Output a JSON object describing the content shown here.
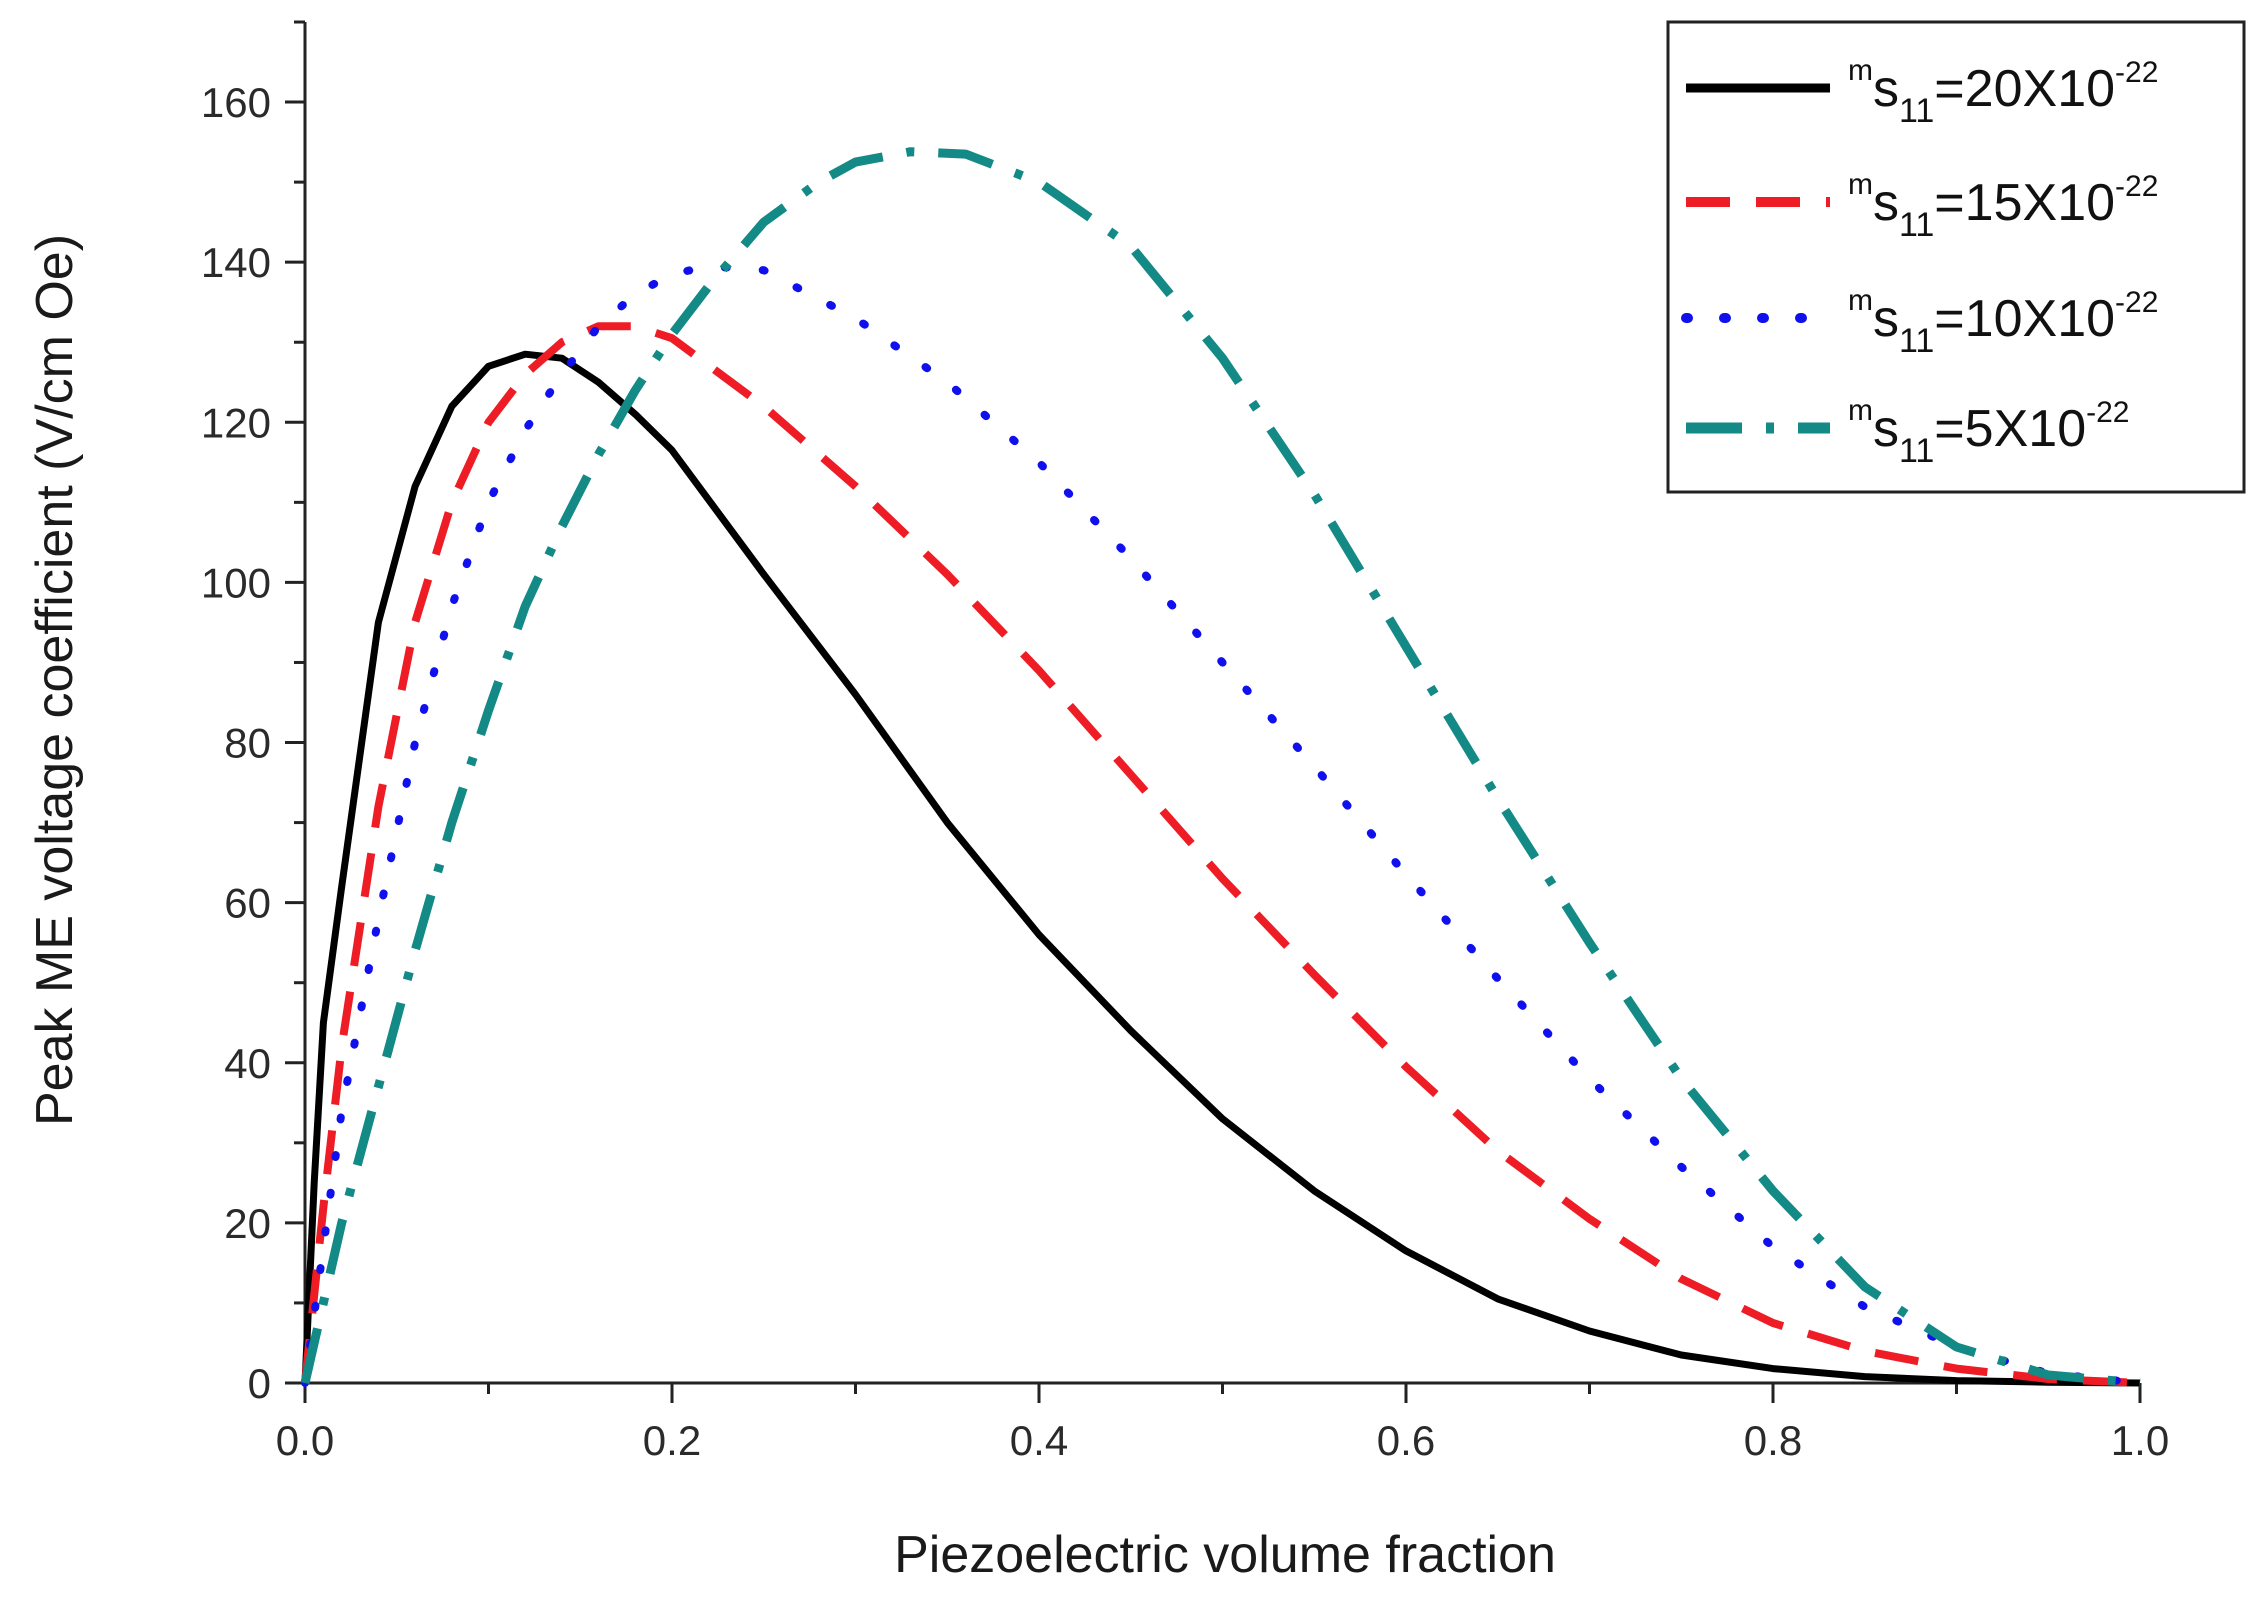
{
  "chart_data": {
    "type": "line",
    "title": "",
    "xlabel": "Piezoelectric volume fraction",
    "ylabel": "Peak ME voltage coefficient (V/cm Oe)",
    "xlim": [
      0.0,
      1.0
    ],
    "ylim": [
      0,
      170
    ],
    "x_ticks": [
      "0.0",
      "0.2",
      "0.4",
      "0.6",
      "0.8",
      "1.0"
    ],
    "y_ticks": [
      "0",
      "20",
      "40",
      "60",
      "80",
      "100",
      "120",
      "140",
      "160"
    ],
    "grid": false,
    "legend_position": "top-right",
    "series": [
      {
        "name": "mS11=20X10-22",
        "legend": {
          "sup": "m",
          "base": "s",
          "sub": "11",
          "eq": "=20X10",
          "exp": "-22"
        },
        "color": "#000000",
        "style": "solid",
        "x": [
          0,
          0.005,
          0.01,
          0.02,
          0.04,
          0.06,
          0.08,
          0.1,
          0.12,
          0.14,
          0.16,
          0.18,
          0.2,
          0.25,
          0.3,
          0.35,
          0.4,
          0.45,
          0.5,
          0.55,
          0.6,
          0.65,
          0.7,
          0.75,
          0.8,
          0.85,
          0.9,
          0.95,
          1.0
        ],
        "y": [
          0,
          25,
          45,
          62,
          95,
          112,
          122,
          127,
          128.5,
          128,
          125,
          121,
          116.5,
          101,
          86,
          70,
          56,
          44,
          33,
          24,
          16.5,
          10.5,
          6.5,
          3.5,
          1.8,
          0.8,
          0.3,
          0.1,
          0
        ]
      },
      {
        "name": "mS11=15X10-22",
        "legend": {
          "sup": "m",
          "base": "s",
          "sub": "11",
          "eq": "=15X10",
          "exp": "-22"
        },
        "color": "#ee1c24",
        "style": "dashed",
        "x": [
          0,
          0.01,
          0.02,
          0.04,
          0.06,
          0.08,
          0.1,
          0.12,
          0.14,
          0.16,
          0.18,
          0.2,
          0.25,
          0.3,
          0.35,
          0.4,
          0.45,
          0.5,
          0.55,
          0.6,
          0.65,
          0.7,
          0.75,
          0.8,
          0.85,
          0.9,
          0.95,
          1.0
        ],
        "y": [
          0,
          22,
          42,
          72,
          95,
          110,
          120,
          126,
          130,
          132,
          132,
          130.5,
          122,
          112,
          101,
          89,
          76,
          63,
          51,
          39.5,
          29,
          20.5,
          13,
          7.5,
          4,
          1.8,
          0.5,
          0
        ]
      },
      {
        "name": "mS11=10X10-22",
        "legend": {
          "sup": "m",
          "base": "s",
          "sub": "11",
          "eq": "=10X10",
          "exp": "-22"
        },
        "color": "#1010ee",
        "style": "dotted",
        "x": [
          0,
          0.01,
          0.02,
          0.04,
          0.06,
          0.08,
          0.1,
          0.12,
          0.14,
          0.16,
          0.18,
          0.2,
          0.22,
          0.25,
          0.3,
          0.35,
          0.4,
          0.45,
          0.5,
          0.55,
          0.6,
          0.65,
          0.7,
          0.75,
          0.8,
          0.85,
          0.9,
          0.95,
          1.0
        ],
        "y": [
          0,
          17,
          34,
          58,
          80,
          97,
          110,
          119,
          126,
          132,
          136,
          138.5,
          139.5,
          139,
          133,
          125,
          115,
          103,
          90,
          77,
          63.5,
          50.5,
          38,
          27,
          17,
          9.5,
          4.5,
          1.2,
          0
        ]
      },
      {
        "name": "mS11=5X10-22",
        "legend": {
          "sup": "m",
          "base": "s",
          "sub": "11",
          "eq": "=5X10",
          "exp": "-22"
        },
        "color": "#138a86",
        "style": "dashdot",
        "x": [
          0,
          0.02,
          0.04,
          0.06,
          0.08,
          0.1,
          0.12,
          0.14,
          0.16,
          0.18,
          0.2,
          0.22,
          0.25,
          0.28,
          0.3,
          0.33,
          0.36,
          0.4,
          0.45,
          0.5,
          0.55,
          0.6,
          0.65,
          0.7,
          0.75,
          0.8,
          0.85,
          0.9,
          0.95,
          1.0
        ],
        "y": [
          0,
          20,
          37,
          54,
          70,
          84,
          97,
          107,
          116,
          124,
          131,
          137,
          145,
          150,
          152.5,
          153.8,
          153.5,
          150,
          142,
          128,
          111,
          92,
          73,
          55,
          38,
          24,
          12,
          4.5,
          1,
          0
        ]
      }
    ]
  }
}
